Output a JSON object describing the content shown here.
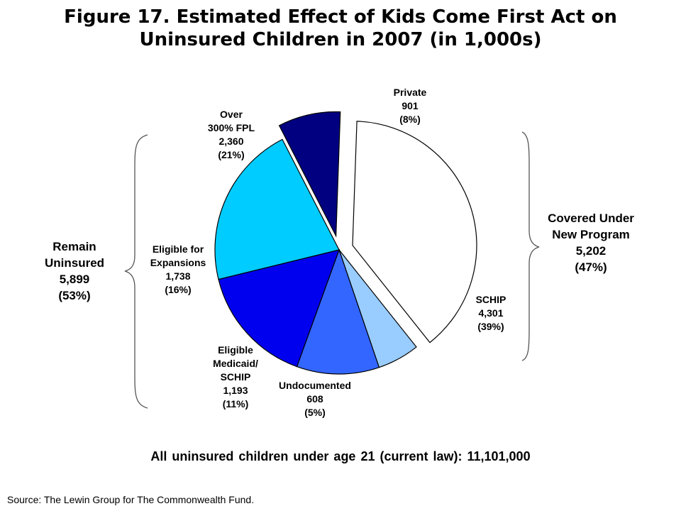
{
  "title": {
    "line1": "Figure 17. Estimated Effect of Kids Come First Act on",
    "line2": "Uninsured Children in 2007 (in 1,000s)"
  },
  "chart_data": {
    "type": "pie",
    "title": "Figure 17. Estimated Effect of Kids Come First Act on Uninsured Children in 2007 (in 1,000s)",
    "slices": [
      {
        "label": "SCHIP",
        "value": 4301,
        "percent": "(39%)",
        "value_label": "4,301",
        "color": "#ffffff",
        "exploded": true
      },
      {
        "label": "Undocumented",
        "value": 608,
        "percent": "(5%)",
        "value_label": "608",
        "color": "#99ccff",
        "exploded": false
      },
      {
        "label": "Eligible Medicaid/ SCHIP",
        "value": 1193,
        "percent": "(11%)",
        "value_label": "1,193",
        "color": "#3366ff",
        "exploded": false
      },
      {
        "label": "Eligible for Expansions",
        "value": 1738,
        "percent": "(16%)",
        "value_label": "1,738",
        "color": "#0000ee",
        "exploded": false
      },
      {
        "label": "Over 300% FPL",
        "value": 2360,
        "percent": "(21%)",
        "value_label": "2,360",
        "color": "#00ccff",
        "exploded": false
      },
      {
        "label": "Private",
        "value": 901,
        "percent": "(8%)",
        "value_label": "901",
        "color": "#000080",
        "exploded": true
      }
    ],
    "groups": {
      "left": {
        "line1": "Remain",
        "line2": "Uninsured",
        "value": "5,899",
        "percent": "(53%)"
      },
      "right": {
        "line1": "Covered Under",
        "line2": "New Program",
        "value": "5,202",
        "percent": "(47%)"
      }
    }
  },
  "labels": {
    "private": {
      "l1": "Private",
      "l2": "901",
      "l3": "(8%)"
    },
    "over300": {
      "l1": "Over",
      "l2": "300% FPL",
      "l3": "2,360",
      "l4": "(21%)"
    },
    "expansions": {
      "l1": "Eligible for",
      "l2": "Expansions",
      "l3": "1,738",
      "l4": "(16%)"
    },
    "medicaid": {
      "l1": "Eligible",
      "l2": "Medicaid/",
      "l3": "SCHIP",
      "l4": "1,193",
      "l5": "(11%)"
    },
    "undocumented": {
      "l1": "Undocumented",
      "l2": "608",
      "l3": "(5%)"
    },
    "schip": {
      "l1": "SCHIP",
      "l2": "4,301",
      "l3": "(39%)"
    }
  },
  "footer": "All uninsured children under age 21 (current law): 11,101,000",
  "source": "Source: The Lewin Group for The Commonwealth Fund."
}
